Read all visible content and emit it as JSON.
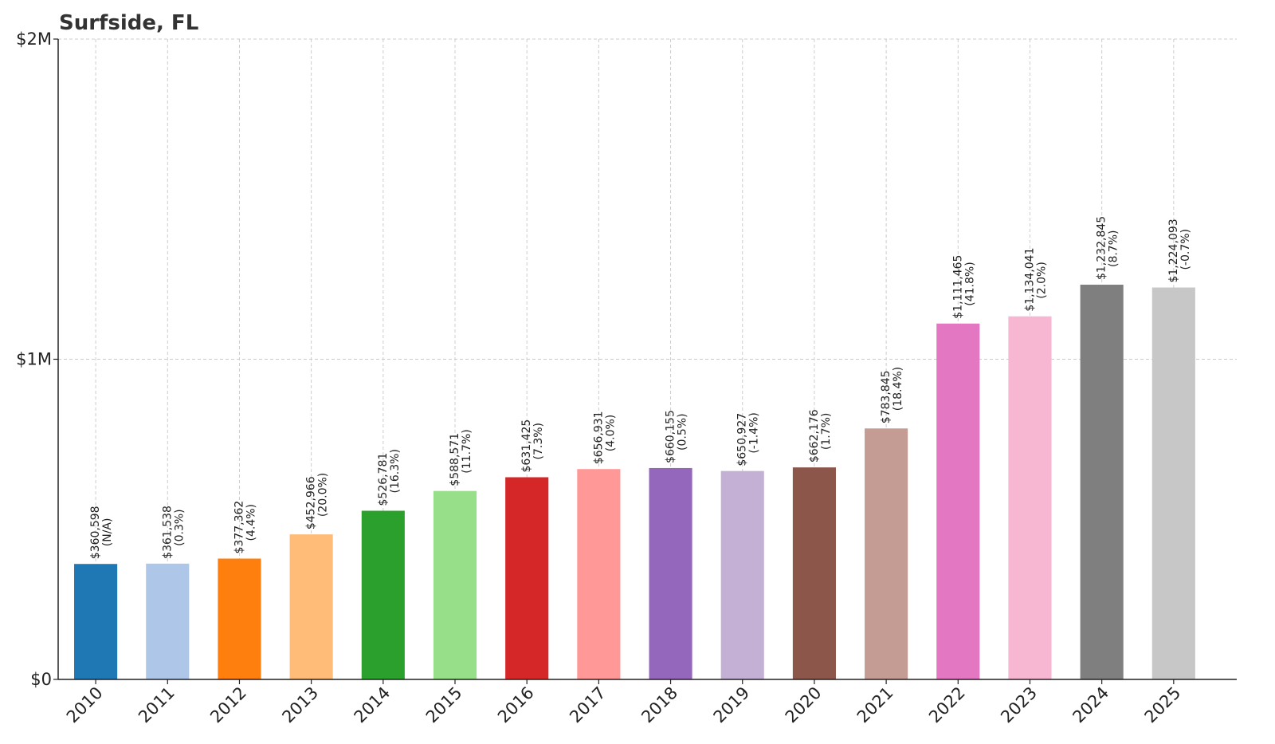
{
  "chart_data": {
    "type": "bar",
    "title": "Surfside, FL",
    "xlabel": "",
    "ylabel": "",
    "categories": [
      "2010",
      "2011",
      "2012",
      "2013",
      "2014",
      "2015",
      "2016",
      "2017",
      "2018",
      "2019",
      "2020",
      "2021",
      "2022",
      "2023",
      "2024",
      "2025"
    ],
    "values": [
      360598,
      361538,
      377362,
      452966,
      526781,
      588571,
      631425,
      656931,
      660155,
      650927,
      662176,
      783845,
      1111465,
      1134041,
      1232845,
      1224093
    ],
    "value_labels": [
      "$360,598",
      "$361,538",
      "$377,362",
      "$452,966",
      "$526,781",
      "$588,571",
      "$631,425",
      "$656,931",
      "$660,155",
      "$650,927",
      "$662,176",
      "$783,845",
      "$1,111,465",
      "$1,134,041",
      "$1,232,845",
      "$1,224,093"
    ],
    "change_labels": [
      "(N/A)",
      "(0.3%)",
      "(4.4%)",
      "(20.0%)",
      "(16.3%)",
      "(11.7%)",
      "(7.3%)",
      "(4.0%)",
      "(0.5%)",
      "(-1.4%)",
      "(1.7%)",
      "(18.4%)",
      "(41.8%)",
      "(2.0%)",
      "(8.7%)",
      "(-0.7%)"
    ],
    "colors": [
      "#1f77b4",
      "#aec7e8",
      "#ff7f0e",
      "#ffbb78",
      "#2ca02c",
      "#98df8a",
      "#d62728",
      "#ff9896",
      "#9467bd",
      "#c5b0d5",
      "#8c564b",
      "#c49c94",
      "#e377c2",
      "#f7b6d2",
      "#7f7f7f",
      "#c7c7c7"
    ],
    "ylim": [
      0,
      2000000
    ],
    "yticks": [
      0,
      1000000,
      2000000
    ],
    "ytick_labels": [
      "$0",
      "$1M",
      "$2M"
    ],
    "grid": true,
    "legend": "none"
  }
}
